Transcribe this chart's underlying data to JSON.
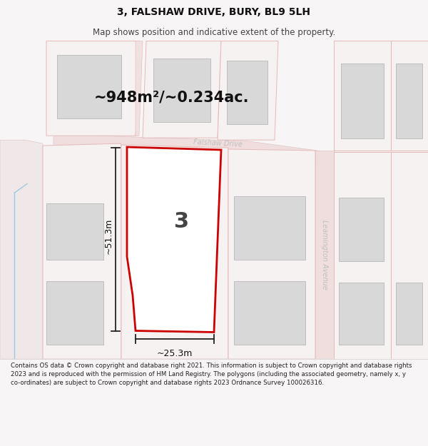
{
  "title": "3, FALSHAW DRIVE, BURY, BL9 5LH",
  "subtitle": "Map shows position and indicative extent of the property.",
  "area_text": "~948m²/~0.234ac.",
  "dim_height": "~51.3m",
  "dim_width": "~25.3m",
  "label_number": "3",
  "road_label": "Falshaw Drive",
  "avenue_label": "Leamington Avenue",
  "footer_text": "Contains OS data © Crown copyright and database right 2021. This information is subject to Crown copyright and database rights 2023 and is reproduced with the permission of HM Land Registry. The polygons (including the associated geometry, namely x, y co-ordinates) are subject to Crown copyright and database rights 2023 Ordnance Survey 100026316.",
  "bg_color": "#f7f5f5",
  "map_bg": "#f7f5f5",
  "plot_color": "#cc0000",
  "plot_fill": "#ffffff",
  "building_color": "#d8d8d8",
  "road_color": "#f0dede",
  "road_line_color": "#e0b8b8",
  "parcel_edge": "#e8b8b8",
  "dim_line_color": "#222222",
  "text_color": "#333333",
  "road_text_color": "#bbbbbb",
  "blue_line_color": "#a0c8e0"
}
